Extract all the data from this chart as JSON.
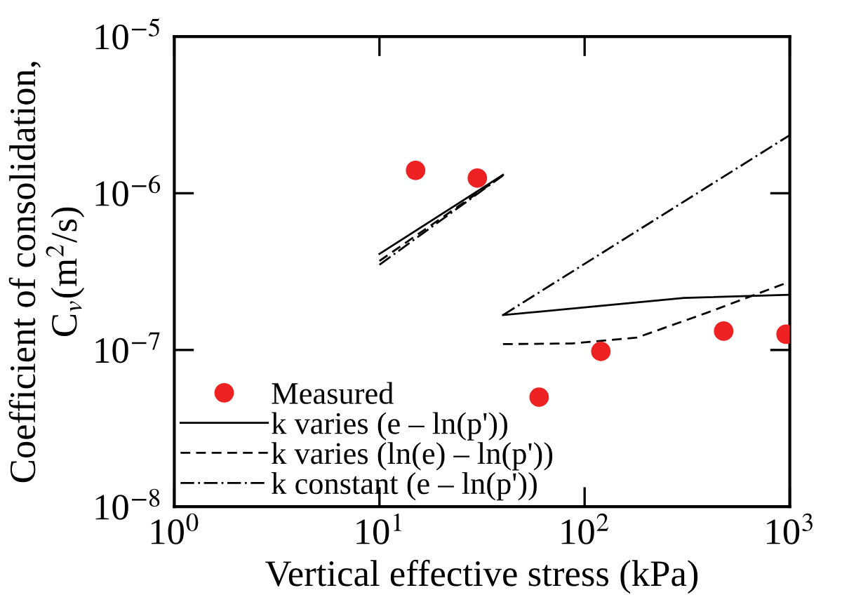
{
  "chart_data": {
    "type": "line",
    "xlabel": "Vertical effective stress (kPa)",
    "ylabel": "Coefficient of consolidation,\nC$_{v}$(m$^{2}$/s)",
    "log": "xy",
    "xlim": [
      1,
      1000
    ],
    "ylim": [
      1e-08,
      1e-05
    ],
    "xticks": [
      {
        "value": 1,
        "label": "10$^{0}$"
      },
      {
        "value": 10,
        "label": "10$^{1}$"
      },
      {
        "value": 100,
        "label": "10$^{2}$"
      },
      {
        "value": 1000,
        "label": "10$^{3}$"
      }
    ],
    "yticks": [
      {
        "value": 1e-08,
        "label": "10$^{−8}$"
      },
      {
        "value": 1e-07,
        "label": "10$^{−7}$"
      },
      {
        "value": 1e-06,
        "label": "10$^{−6}$"
      },
      {
        "value": 1e-05,
        "label": "10$^{−5}$"
      }
    ],
    "grid": false,
    "legend": "bottom left",
    "series": [
      {
        "name": "Measured",
        "type": "scatter",
        "marker": "circle",
        "color": "#ee2222",
        "x": [
          15,
          30,
          60,
          120,
          476,
          959
        ],
        "values": [
          1.4e-06,
          1.25e-06,
          5e-08,
          9.8e-08,
          1.32e-07,
          1.26e-07
        ]
      },
      {
        "name": "k varies (e – ln(p'))",
        "color": "#000000",
        "line_style": "solid",
        "x": [
          10,
          40,
          null,
          40,
          305,
          1000
        ],
        "values": [
          4.1e-07,
          1.31e-06,
          null,
          1.67e-07,
          2.15e-07,
          2.25e-07
        ]
      },
      {
        "name": "k varies (ln(e) – ln(p'))",
        "color": "#000000",
        "line_style": "dashed",
        "x": [
          10,
          40,
          null,
          40,
          86,
          180,
          396,
          1000
        ],
        "values": [
          3.7e-07,
          1.3e-06,
          null,
          1.09e-07,
          1.1e-07,
          1.2e-07,
          1.73e-07,
          2.73e-07
        ]
      },
      {
        "name": "k constant (e – ln(p'))",
        "color": "#000000",
        "line_style": "dashdot",
        "x": [
          10,
          40,
          null,
          40,
          1000
        ],
        "values": [
          3.5e-07,
          1.3e-06,
          null,
          1.67e-07,
          2.35e-06
        ]
      }
    ]
  }
}
